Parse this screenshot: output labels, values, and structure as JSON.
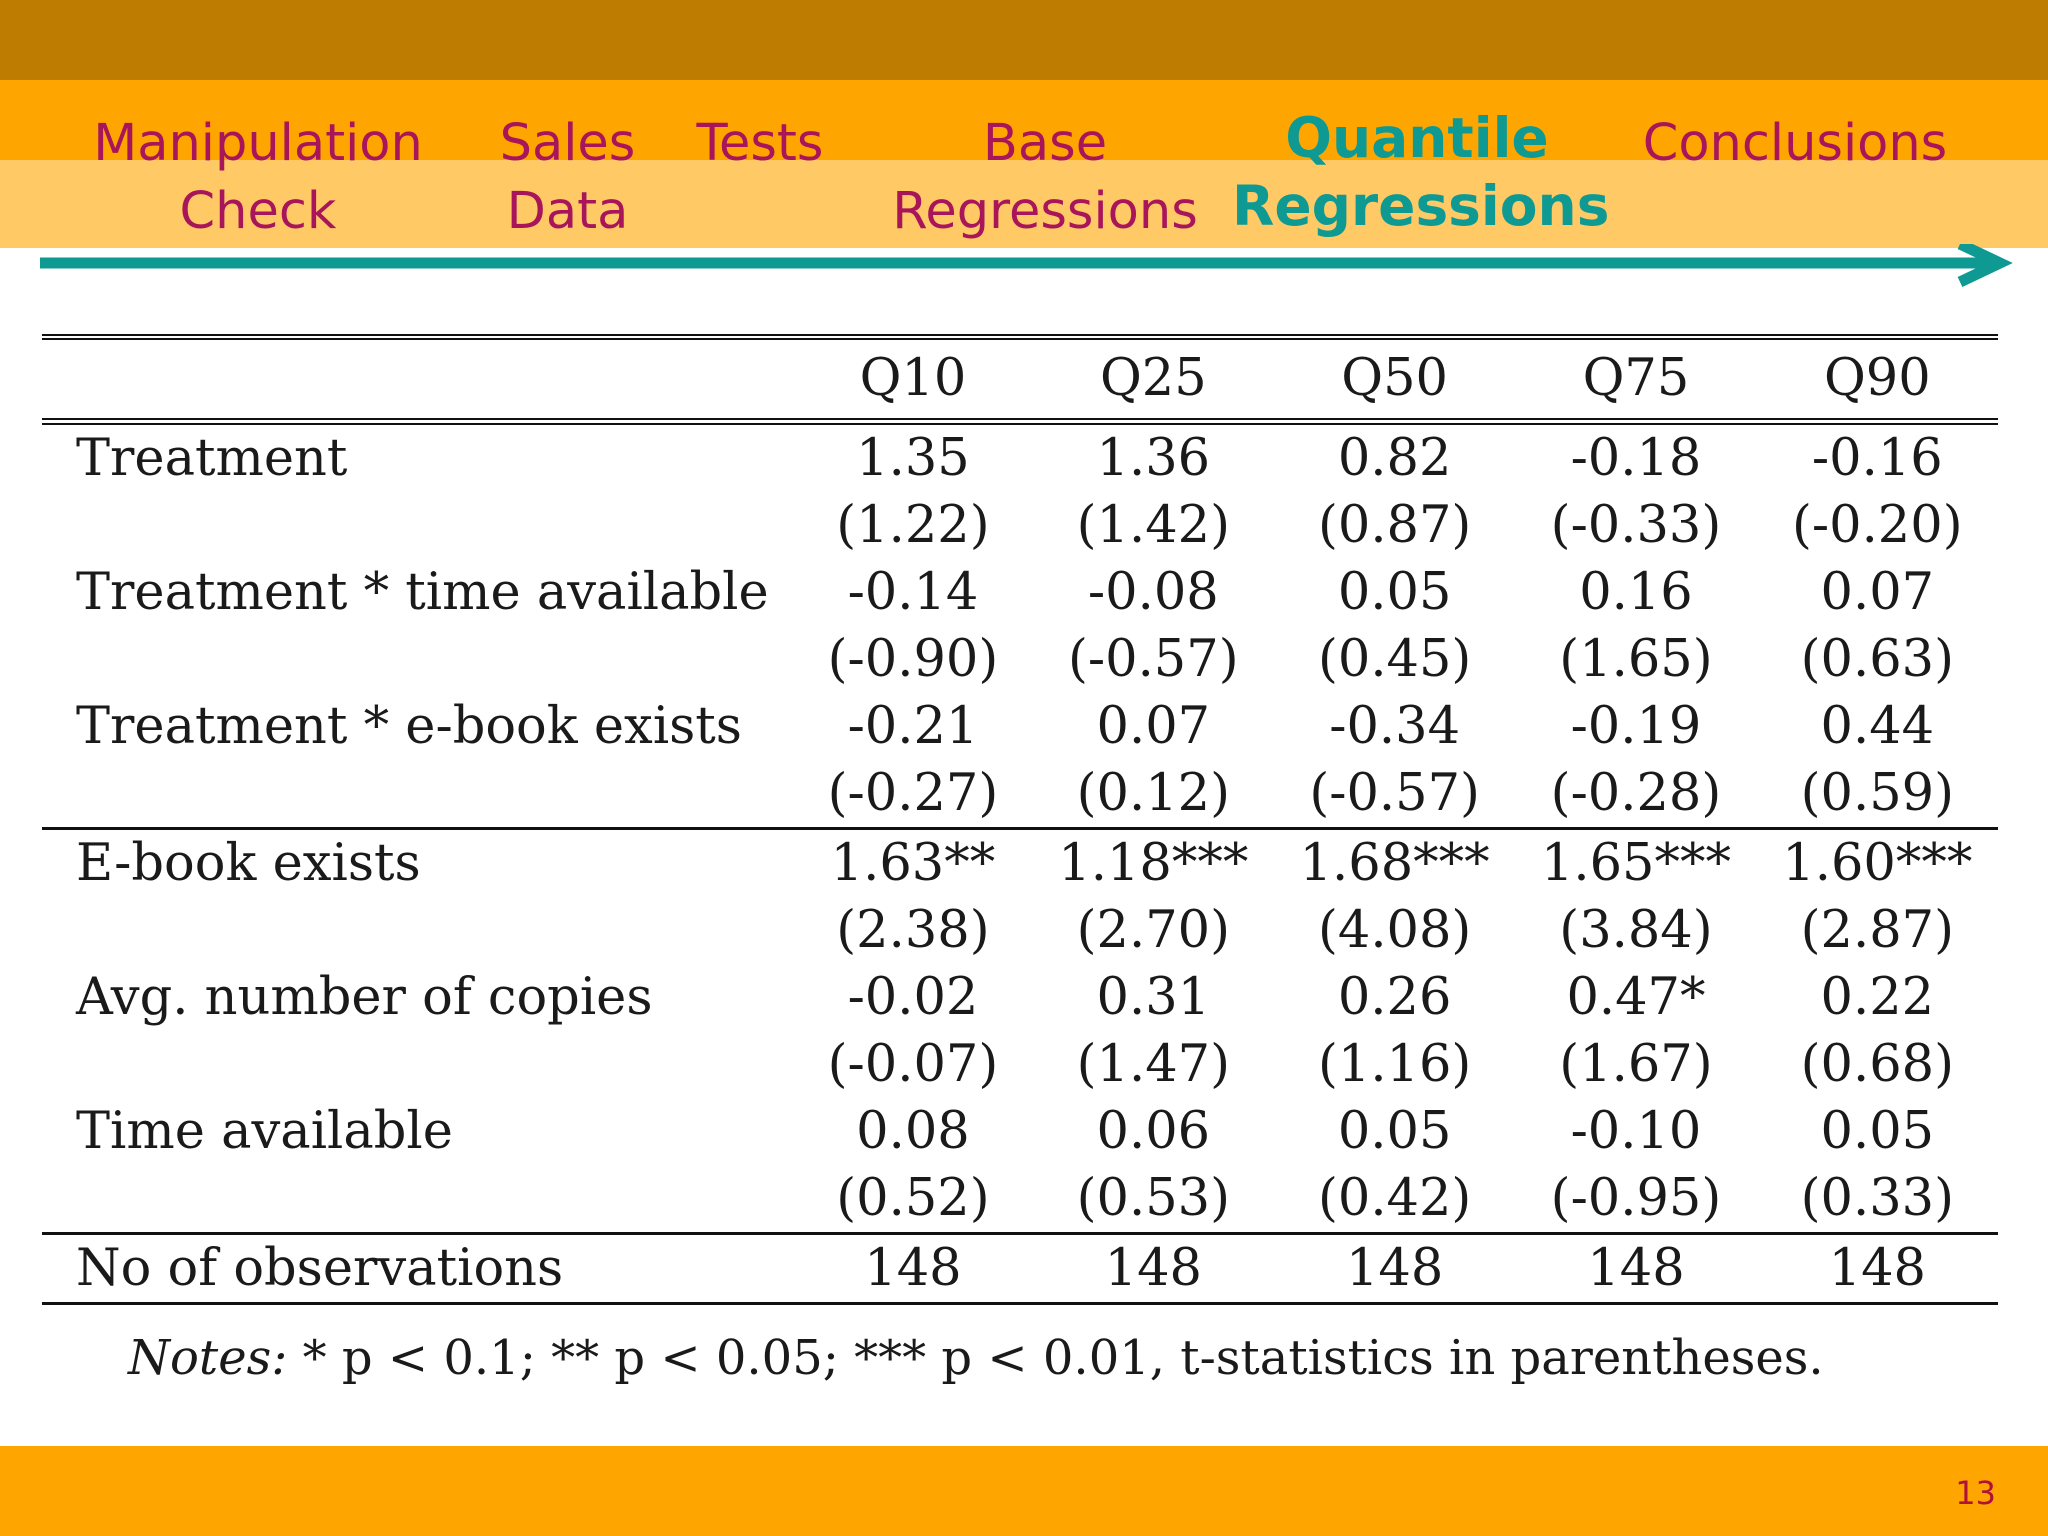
{
  "nav": {
    "items": [
      {
        "line1": "Manipulation",
        "line2": "Check"
      },
      {
        "line1": "Sales",
        "line2": "Data"
      },
      {
        "line1": "",
        "line2": "Tests"
      },
      {
        "line1": "Base",
        "line2": "Regressions"
      },
      {
        "line1": "Quantile",
        "line2": "Regressions"
      },
      {
        "line1": "",
        "line2": "Conclusions"
      }
    ],
    "active_index": 4,
    "colors": {
      "inactive": "#A8155A",
      "active": "#0E9A93",
      "band_dark": "#BE7D00",
      "band_mid": "#FFA500",
      "band_light": "#FFC966"
    }
  },
  "table": {
    "columns": [
      "Q10",
      "Q25",
      "Q50",
      "Q75",
      "Q90"
    ],
    "rows": [
      {
        "label": "Treatment",
        "values": [
          "1.35",
          "1.36",
          "0.82",
          "-0.18",
          "-0.16"
        ]
      },
      {
        "label": "",
        "values": [
          "(1.22)",
          "(1.42)",
          "(0.87)",
          "(-0.33)",
          "(-0.20)"
        ]
      },
      {
        "label": "Treatment * time available",
        "values": [
          "-0.14",
          "-0.08",
          "0.05",
          "0.16",
          "0.07"
        ]
      },
      {
        "label": "",
        "values": [
          "(-0.90)",
          "(-0.57)",
          "(0.45)",
          "(1.65)",
          "(0.63)"
        ]
      },
      {
        "label": "Treatment * e-book exists",
        "values": [
          "-0.21",
          "0.07",
          "-0.34",
          "-0.19",
          "0.44"
        ]
      },
      {
        "label": "",
        "values": [
          "(-0.27)",
          "(0.12)",
          "(-0.57)",
          "(-0.28)",
          "(0.59)"
        ]
      },
      {
        "label": "E-book exists",
        "values": [
          "1.63**",
          "1.18***",
          "1.68***",
          "1.65***",
          "1.60***"
        ]
      },
      {
        "label": "",
        "values": [
          "(2.38)",
          "(2.70)",
          "(4.08)",
          "(3.84)",
          "(2.87)"
        ]
      },
      {
        "label": "Avg. number of copies",
        "values": [
          "-0.02",
          "0.31",
          "0.26",
          "0.47*",
          "0.22"
        ]
      },
      {
        "label": "",
        "values": [
          "(-0.07)",
          "(1.47)",
          "(1.16)",
          "(1.67)",
          "(0.68)"
        ]
      },
      {
        "label": "Time available",
        "values": [
          "0.08",
          "0.06",
          "0.05",
          "-0.10",
          "0.05"
        ]
      },
      {
        "label": "",
        "values": [
          "(0.52)",
          "(0.53)",
          "(0.42)",
          "(-0.95)",
          "(0.33)"
        ]
      },
      {
        "label": "No of observations",
        "values": [
          "148",
          "148",
          "148",
          "148",
          "148"
        ]
      }
    ]
  },
  "notes": {
    "lead": "Notes:",
    "text": " * p < 0.1; ** p < 0.05; *** p < 0.01, t-statistics in parentheses."
  },
  "page_number": "13"
}
